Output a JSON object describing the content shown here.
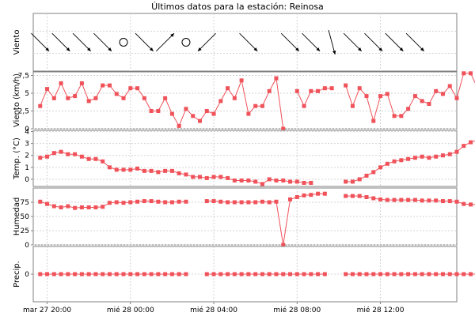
{
  "chart_data": {
    "type": "line",
    "title": "Últimos datos para la estación: Reinosa",
    "x_start": "2024-03-27T19:20",
    "x_end": "2024-03-28T15:40",
    "x_tick_labels": [
      {
        "t": "2024-03-27T20:00",
        "label": "mar 27 20:00"
      },
      {
        "t": "2024-03-28T00:00",
        "label": "mié 28 00:00"
      },
      {
        "t": "2024-03-28T04:00",
        "label": "mié 28 04:00"
      },
      {
        "t": "2024-03-28T08:00",
        "label": "mié 28 08:00"
      },
      {
        "t": "2024-03-28T12:00",
        "label": "mié 28 12:00"
      }
    ],
    "grid": true,
    "series_color": "#f0525a",
    "panels": [
      {
        "key": "wind_dir",
        "ylabel": "Viento",
        "type": "vector",
        "x": [
          "2024-03-27T19:40",
          "2024-03-27T20:40",
          "2024-03-27T21:40",
          "2024-03-27T22:40",
          "2024-03-27T23:40",
          "2024-03-28T00:40",
          "2024-03-28T01:40",
          "2024-03-28T02:40",
          "2024-03-28T03:40",
          "2024-03-28T05:40",
          "2024-03-28T07:40",
          "2024-03-28T08:40",
          "2024-03-28T09:40",
          "2024-03-28T10:40",
          "2024-03-28T11:40",
          "2024-03-28T12:40",
          "2024-03-28T13:40"
        ],
        "direction_deg": [
          225,
          225,
          225,
          225,
          null,
          225,
          315,
          null,
          135,
          225,
          225,
          225,
          195,
          225,
          225,
          225,
          225
        ],
        "calm": [
          false,
          false,
          false,
          false,
          true,
          false,
          false,
          true,
          false,
          false,
          false,
          false,
          false,
          false,
          false,
          false,
          false
        ]
      },
      {
        "key": "wind_speed",
        "ylabel": "Viento (km/h)",
        "ylim": [
          0,
          8
        ],
        "yticks": [
          0,
          2.5,
          5,
          7.5
        ],
        "yticklabels": [
          "0",
          "2,5",
          "5",
          "7,5"
        ],
        "x_start": "2024-03-27T19:40",
        "x_step_min": 20,
        "values": [
          3.2,
          5.6,
          4.3,
          6.4,
          4.3,
          4.6,
          6.4,
          3.9,
          4.3,
          6.1,
          6.1,
          4.9,
          4.3,
          5.7,
          5.7,
          4.3,
          2.5,
          2.5,
          4.3,
          2.1,
          0.4,
          2.8,
          1.8,
          1.1,
          2.5,
          2.1,
          3.9,
          5.7,
          4.3,
          6.8,
          2.1,
          3.2,
          3.2,
          5.3,
          7.1,
          0.0,
          null,
          5.3,
          3.2,
          5.3,
          5.3,
          5.7,
          5.7,
          null,
          6.1,
          3.2,
          5.7,
          4.6,
          1.1,
          4.6,
          4.9,
          1.8,
          1.8,
          2.8,
          4.6,
          3.9,
          3.5,
          5.3,
          4.9,
          6.0,
          4.3,
          7.8,
          7.8,
          5.7,
          5.3,
          3.9,
          5.3,
          6.8,
          7.8
        ]
      },
      {
        "key": "temp",
        "ylabel": "Temp. (°C)",
        "ylim": [
          -0.6,
          4.1
        ],
        "yticks": [
          0,
          1,
          2,
          3,
          4
        ],
        "yticklabels": [
          "0",
          "1",
          "2",
          "3",
          "4"
        ],
        "x_start": "2024-03-27T19:40",
        "x_step_min": 20,
        "values": [
          1.8,
          1.9,
          2.2,
          2.3,
          2.1,
          2.1,
          1.9,
          1.7,
          1.7,
          1.5,
          1.0,
          0.8,
          0.8,
          0.8,
          0.9,
          0.7,
          0.7,
          0.6,
          0.7,
          0.7,
          0.5,
          0.4,
          0.2,
          0.2,
          0.1,
          0.2,
          0.2,
          0.1,
          -0.1,
          -0.1,
          -0.1,
          -0.2,
          -0.4,
          0.0,
          -0.1,
          -0.1,
          -0.2,
          -0.2,
          -0.3,
          -0.3,
          null,
          null,
          null,
          null,
          -0.2,
          -0.2,
          0.0,
          0.3,
          0.6,
          1.0,
          1.3,
          1.5,
          1.6,
          1.7,
          1.8,
          1.9,
          1.8,
          1.9,
          2.0,
          2.1,
          2.3,
          2.8,
          3.1,
          3.3,
          3.4,
          3.5,
          3.5,
          3.4,
          3.4,
          3.6,
          3.7,
          4.0
        ]
      },
      {
        "key": "humidity",
        "ylabel": "Humedad",
        "ylim": [
          0,
          100
        ],
        "yticks": [
          0,
          25,
          50,
          75
        ],
        "yticklabels": [
          "0",
          "25",
          "50",
          "75"
        ],
        "x_start": "2024-03-27T19:40",
        "x_step_min": 20,
        "values": [
          76,
          72,
          68,
          66,
          68,
          65,
          66,
          66,
          66,
          67,
          74,
          75,
          74,
          75,
          76,
          77,
          77,
          76,
          75,
          75,
          76,
          76,
          null,
          null,
          77,
          77,
          76,
          75,
          75,
          75,
          75,
          75,
          76,
          75,
          76,
          0,
          80,
          84,
          87,
          88,
          90,
          90,
          null,
          null,
          86,
          86,
          86,
          84,
          82,
          80,
          79,
          79,
          79,
          79,
          79,
          78,
          78,
          78,
          77,
          77,
          76,
          72,
          71,
          71,
          70,
          69,
          69,
          70,
          73,
          73,
          73
        ]
      },
      {
        "key": "precip",
        "ylabel": "Precip.",
        "ylim": [
          -1,
          1
        ],
        "yticks": [
          0
        ],
        "yticklabels": [
          "0"
        ],
        "x_start": "2024-03-27T19:40",
        "x_step_min": 20,
        "values": [
          0,
          0,
          0,
          0,
          0,
          0,
          0,
          0,
          0,
          0,
          0,
          0,
          0,
          0,
          0,
          0,
          0,
          0,
          0,
          0,
          0,
          0,
          null,
          null,
          0,
          0,
          0,
          0,
          0,
          0,
          0,
          0,
          0,
          0,
          0,
          0,
          0,
          0,
          0,
          0,
          0,
          0,
          null,
          null,
          0,
          0,
          0,
          0,
          0,
          0,
          0,
          0,
          0,
          0,
          0,
          0,
          0,
          0,
          0,
          0,
          0,
          0,
          0,
          0,
          0,
          0,
          0,
          0,
          0,
          0,
          0,
          0
        ]
      }
    ]
  }
}
